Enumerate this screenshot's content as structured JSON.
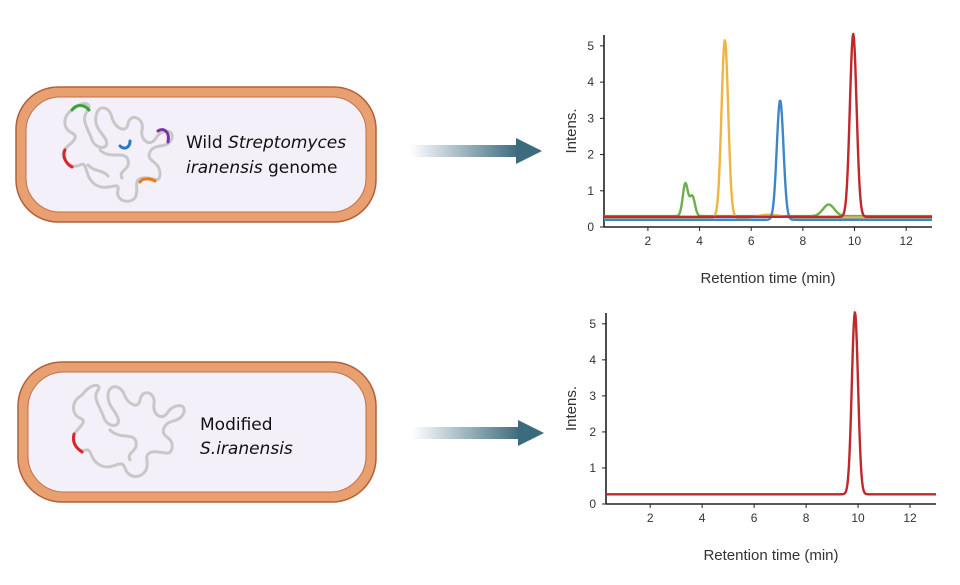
{
  "panels": [
    {
      "cell": {
        "label_line1_prefix": "Wild ",
        "label_line1_italic": "Streptomyces",
        "label_line2_italic": "iranensis",
        "label_line2_suffix": " genome",
        "highlight_segments": [
          "green",
          "purple",
          "blue",
          "red",
          "orange"
        ]
      },
      "chart_data": {
        "type": "line",
        "xlabel": "Retention time (min)",
        "ylabel": "Intens.",
        "xlim": [
          0.3,
          13
        ],
        "ylim": [
          0,
          5.3
        ],
        "x_ticks": [
          2,
          4,
          6,
          8,
          10,
          12
        ],
        "y_ticks": [
          0,
          1,
          2,
          3,
          4,
          5
        ],
        "series": [
          {
            "color": "#6ab04c",
            "baseline": 0.3,
            "peaks": [
              [
                3.45,
                0.9,
                0.1
              ],
              [
                3.72,
                0.55,
                0.1
              ],
              [
                9.0,
                0.32,
                0.22
              ]
            ]
          },
          {
            "color": "#f0b442",
            "baseline": 0.26,
            "peaks": [
              [
                4.98,
                4.9,
                0.13
              ],
              [
                6.7,
                0.08,
                0.4
              ]
            ]
          },
          {
            "color": "#3e86c9",
            "baseline": 0.2,
            "peaks": [
              [
                7.12,
                3.3,
                0.13
              ]
            ]
          },
          {
            "color": "#c0282b",
            "baseline": 0.28,
            "peaks": [
              [
                9.95,
                5.05,
                0.13
              ]
            ]
          }
        ]
      }
    },
    {
      "cell": {
        "label_line1_prefix": "Modified",
        "label_line2_italic": "S.iranensis",
        "highlight_segments": [
          "red"
        ]
      },
      "chart_data": {
        "type": "line",
        "xlabel": "Retention time (min)",
        "ylabel": "Intens.",
        "xlim": [
          0.3,
          13
        ],
        "ylim": [
          0,
          5.3
        ],
        "x_ticks": [
          2,
          4,
          6,
          8,
          10,
          12
        ],
        "y_ticks": [
          0,
          1,
          2,
          3,
          4,
          5
        ],
        "series": [
          {
            "color": "#c0282b",
            "baseline": 0.27,
            "peaks": [
              [
                9.88,
                5.05,
                0.12
              ]
            ]
          }
        ]
      }
    }
  ],
  "colors": {
    "cell_wall": "#e8a070",
    "cell_wall_stroke": "#b0603a",
    "cell_interior": "#f4f0fa",
    "genome": "#c8c8c8",
    "arrow": "#3d6b7e",
    "green": "#3aa537",
    "purple": "#7b2fa8",
    "blue": "#2a79c4",
    "red": "#d9262b",
    "orange": "#e67a1e"
  }
}
